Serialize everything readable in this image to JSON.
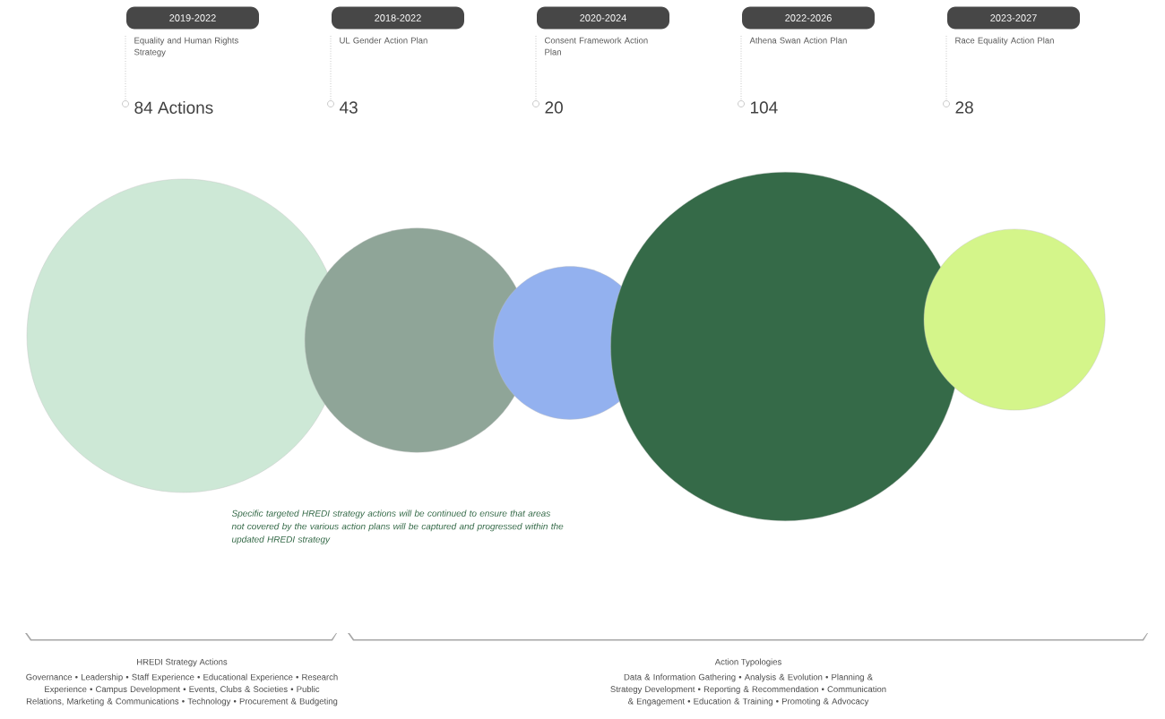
{
  "chart_data": {
    "type": "other",
    "categories": [
      "Equality and Human Rights Strategy",
      "UL Gender Action Plan",
      "Consent Framework Action Plan",
      "Athena Swan Action Plan",
      "Race Equality Action Plan"
    ],
    "values": [
      84,
      43,
      20,
      104,
      28
    ],
    "value_labels": [
      "84 Actions",
      "43",
      "20",
      "104",
      "28"
    ],
    "colors": [
      "#cde8d6",
      "#8fa598",
      "#93b1ef",
      "#356a48",
      "#d4f58a"
    ],
    "annotations": [
      {
        "text": "2019-2022",
        "x": "Equality and Human Rights Strategy"
      },
      {
        "text": "2018-2022",
        "x": "UL Gender Action Plan"
      },
      {
        "text": "2020-2024",
        "x": "Consent Framework Action Plan"
      },
      {
        "text": "2022-2026",
        "x": "Athena Swan Action Plan"
      },
      {
        "text": "2023-2027",
        "x": "Race Equality Action Plan"
      },
      "Specific targeted HREDI strategy actions will be continued to ensure that areas not covered by the various action plans will be captured and progressed within the updated HREDI strategy",
      "HREDI Strategy Actions",
      "Governance • Leadership • Staff Experience • Educational Experience • Research Experience • Campus Development • Events, Clubs & Societies • Public Relations, Marketing & Communications • Technology • Procurement & Budgeting",
      "Action Typologies",
      "Data & Information Gathering • Analysis & Evolution • Planning & Strategy Development • Reporting & Recommendation • Communication & Engagement • Education & Training • Promoting & Advocacy"
    ]
  }
}
